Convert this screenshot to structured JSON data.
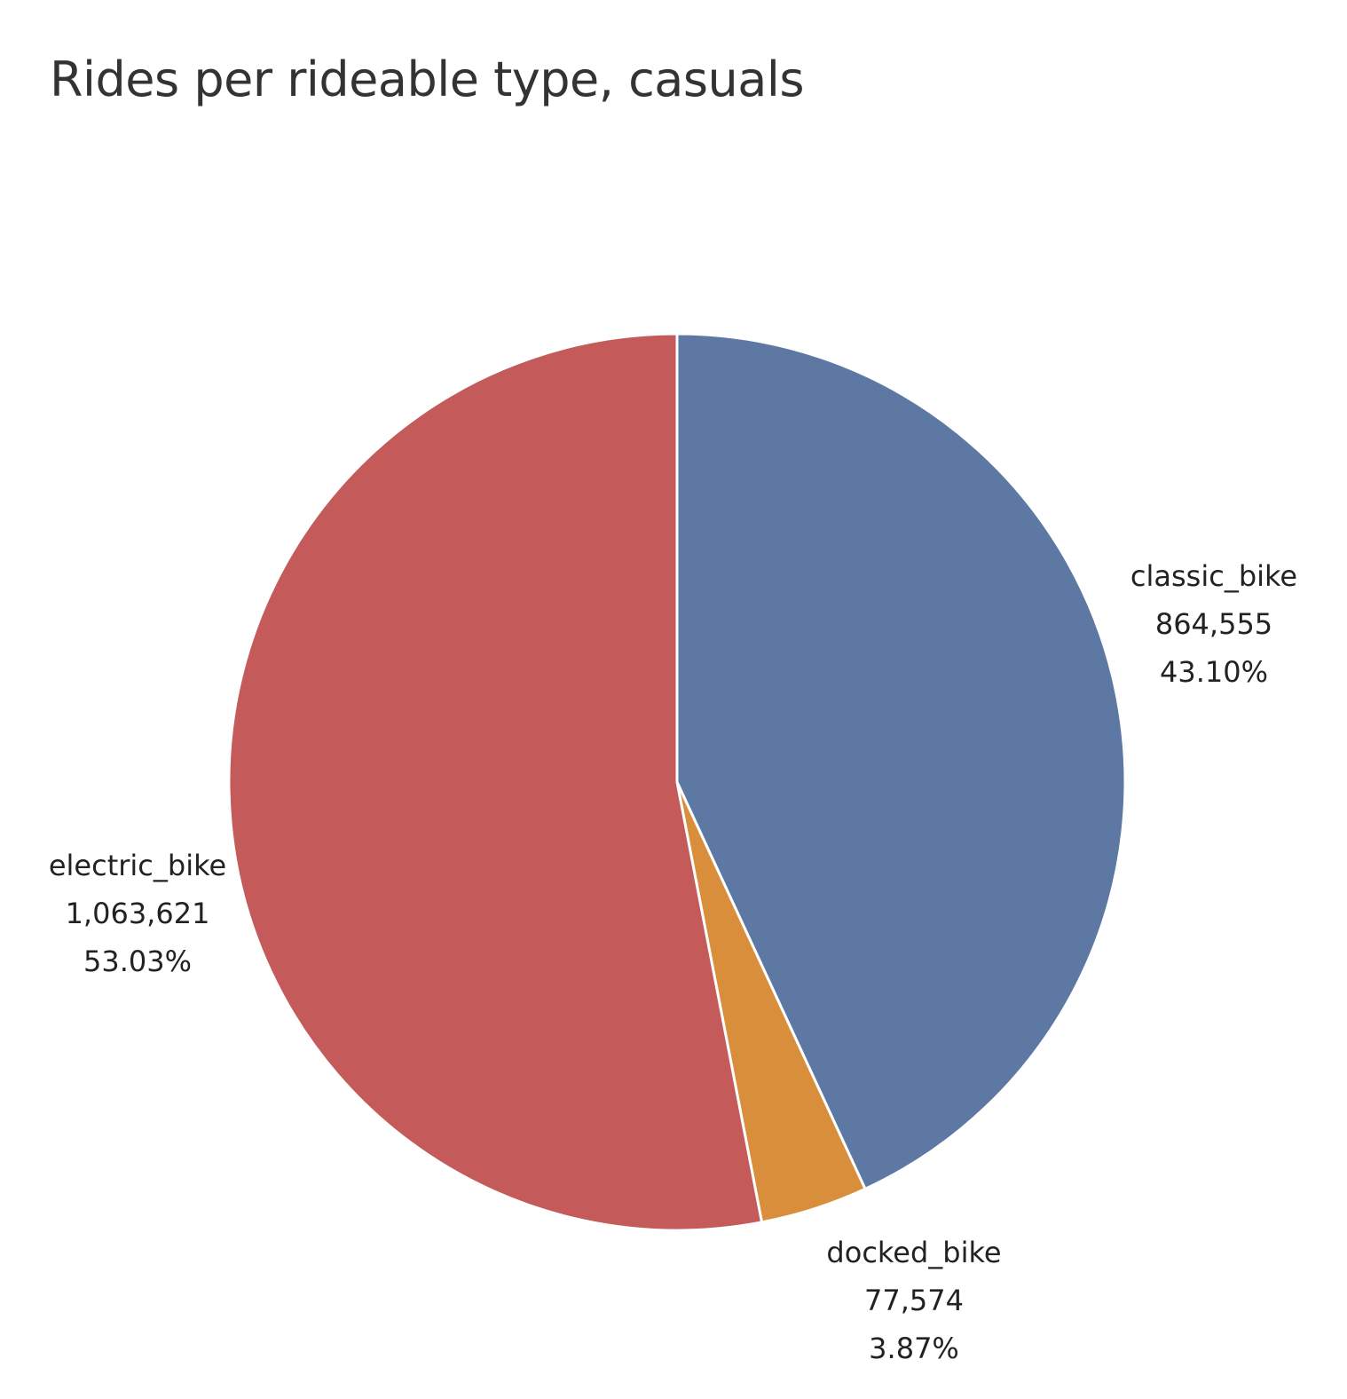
{
  "chart_data": {
    "type": "pie",
    "title": "Rides per rideable type, casuals",
    "start_angle_deg": 0,
    "direction": "clockwise",
    "slices": [
      {
        "name": "classic_bike",
        "value": 864555,
        "value_label": "864,555",
        "percent_label": "43.10%",
        "color": "#5e78a4"
      },
      {
        "name": "docked_bike",
        "value": 77574,
        "value_label": "77,574",
        "percent_label": "3.87%",
        "color": "#d98e3b"
      },
      {
        "name": "electric_bike",
        "value": 1063621,
        "value_label": "1,063,621",
        "percent_label": "53.03%",
        "color": "#c45a5a"
      }
    ]
  }
}
